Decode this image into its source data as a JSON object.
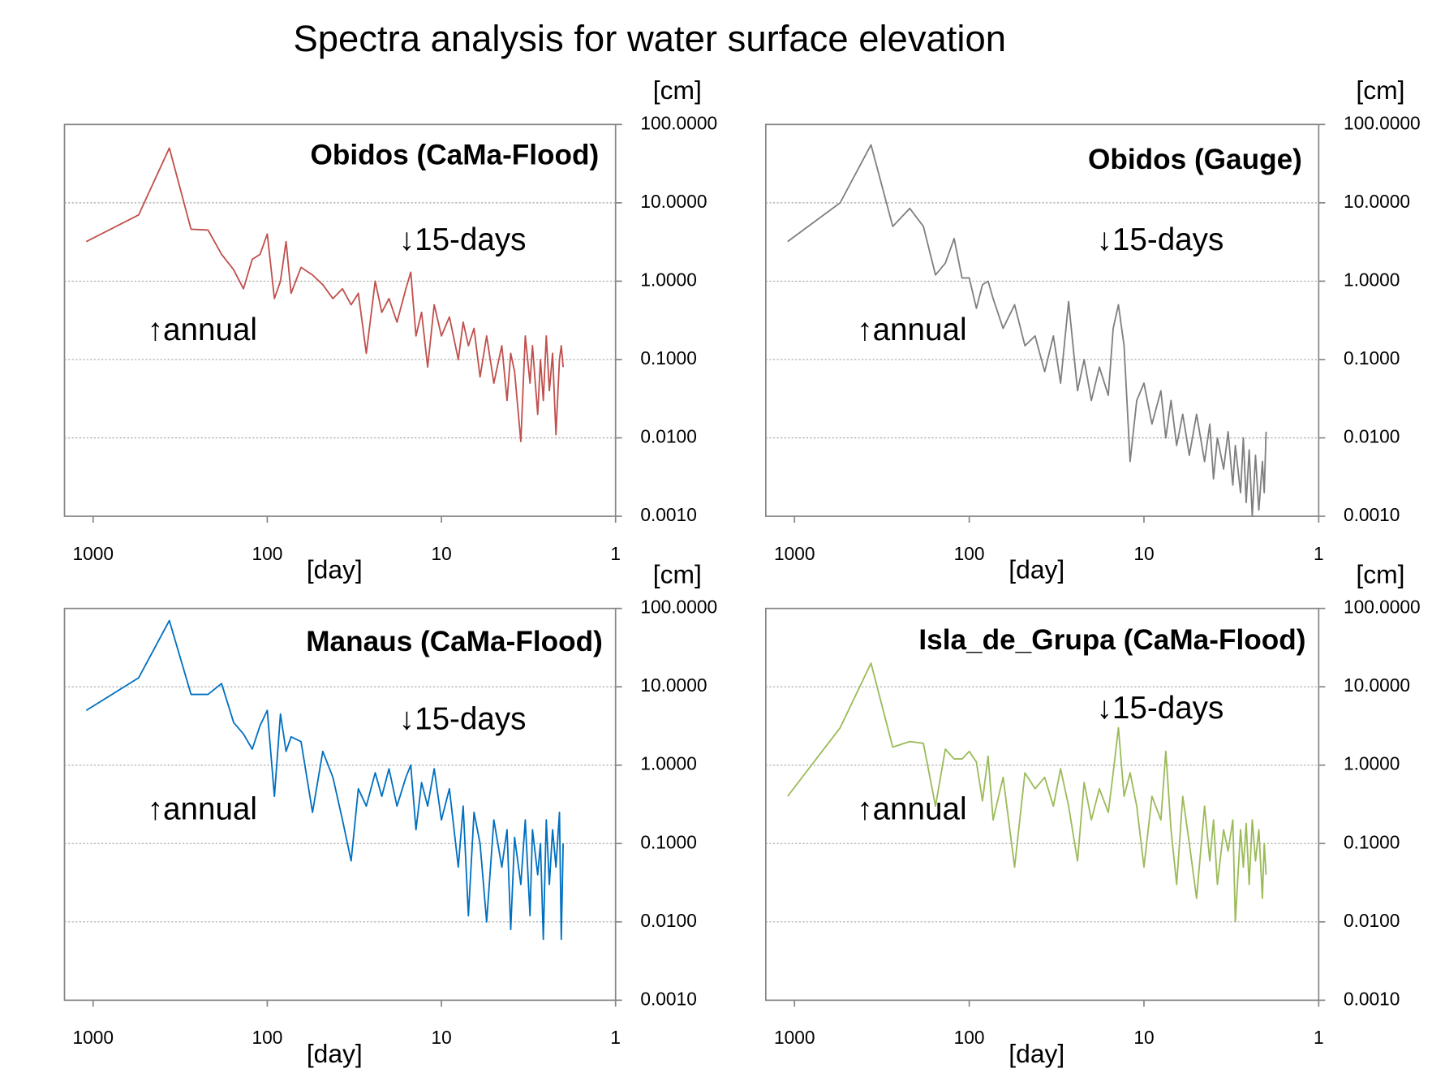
{
  "title": "Spectra analysis for water surface elevation",
  "chart_data": [
    {
      "type": "line",
      "title": "Obidos (CaMa-Flood)",
      "x_label": "[day]",
      "y_label": "[cm]",
      "annotations": [
        "↑annual",
        "↓15-days"
      ],
      "color": "#c0504d",
      "x_log": true,
      "y_log": true,
      "grid": true,
      "xlim": [
        1460,
        1
      ],
      "xticks": [
        1000,
        100,
        10,
        1
      ],
      "ylim": [
        0.001,
        100
      ],
      "yticks": [
        {
          "value": 0.001,
          "label": "0.0010"
        },
        {
          "value": 0.01,
          "label": "0.0100"
        },
        {
          "value": 0.1,
          "label": "0.1000"
        },
        {
          "value": 1,
          "label": "1.0000"
        },
        {
          "value": 10,
          "label": "10.0000"
        },
        {
          "value": 100,
          "label": "100.0000"
        }
      ],
      "x": [
        1095,
        548,
        365,
        274,
        219,
        183,
        156,
        137,
        122,
        110,
        100,
        91,
        84,
        78,
        73,
        64,
        55,
        48,
        42,
        37,
        33,
        30,
        27,
        24,
        22,
        20,
        18,
        16,
        15,
        14,
        13,
        12,
        11,
        10,
        9,
        8,
        7.5,
        7,
        6.5,
        6,
        5.5,
        5,
        4.5,
        4.2,
        4,
        3.8,
        3.5,
        3.3,
        3.1,
        3,
        2.8,
        2.7,
        2.6,
        2.5,
        2.4,
        2.3,
        2.2,
        2.1,
        2.05,
        2
      ],
      "values": [
        3.2,
        7,
        50,
        4.6,
        4.5,
        2.2,
        1.4,
        0.8,
        1.9,
        2.2,
        4,
        0.6,
        1.0,
        3.2,
        0.7,
        1.5,
        1.2,
        0.9,
        0.6,
        0.8,
        0.5,
        0.7,
        0.12,
        1.0,
        0.4,
        0.6,
        0.3,
        0.8,
        1.3,
        0.2,
        0.4,
        0.08,
        0.5,
        0.2,
        0.35,
        0.1,
        0.3,
        0.15,
        0.25,
        0.06,
        0.2,
        0.05,
        0.15,
        0.03,
        0.12,
        0.07,
        0.009,
        0.2,
        0.05,
        0.15,
        0.02,
        0.1,
        0.03,
        0.2,
        0.04,
        0.12,
        0.011,
        0.1,
        0.15,
        0.08
      ]
    },
    {
      "type": "line",
      "title": "Obidos (Gauge)",
      "x_label": "[day]",
      "y_label": "[cm]",
      "annotations": [
        "↑annual",
        "↓15-days"
      ],
      "color": "#7f7f7f",
      "x_log": true,
      "y_log": true,
      "grid": true,
      "xlim": [
        1460,
        1
      ],
      "xticks": [
        1000,
        100,
        10,
        1
      ],
      "ylim": [
        0.001,
        100
      ],
      "yticks": [
        {
          "value": 0.001,
          "label": "0.0010"
        },
        {
          "value": 0.01,
          "label": "0.0100"
        },
        {
          "value": 0.1,
          "label": "0.1000"
        },
        {
          "value": 1,
          "label": "1.0000"
        },
        {
          "value": 10,
          "label": "10.0000"
        },
        {
          "value": 100,
          "label": "100.0000"
        }
      ],
      "x": [
        1095,
        548,
        365,
        274,
        219,
        183,
        156,
        137,
        122,
        110,
        100,
        91,
        84,
        78,
        73,
        64,
        55,
        48,
        42,
        37,
        33,
        30,
        27,
        24,
        22,
        20,
        18,
        16,
        15,
        14,
        13,
        12,
        11,
        10,
        9,
        8,
        7.5,
        7,
        6.5,
        6,
        5.5,
        5,
        4.5,
        4.2,
        4,
        3.8,
        3.5,
        3.3,
        3.1,
        3,
        2.8,
        2.7,
        2.6,
        2.5,
        2.4,
        2.3,
        2.2,
        2.1,
        2.05,
        2
      ],
      "values": [
        3.2,
        10,
        55,
        5,
        8.5,
        5,
        1.2,
        1.7,
        3.5,
        1.1,
        1.1,
        0.45,
        0.9,
        1.0,
        0.6,
        0.25,
        0.5,
        0.15,
        0.2,
        0.07,
        0.2,
        0.05,
        0.55,
        0.04,
        0.1,
        0.03,
        0.08,
        0.035,
        0.25,
        0.5,
        0.15,
        0.005,
        0.03,
        0.05,
        0.015,
        0.04,
        0.01,
        0.03,
        0.008,
        0.02,
        0.006,
        0.02,
        0.005,
        0.015,
        0.003,
        0.01,
        0.004,
        0.012,
        0.0025,
        0.008,
        0.002,
        0.01,
        0.0015,
        0.007,
        0.001,
        0.006,
        0.0012,
        0.005,
        0.002,
        0.012
      ]
    },
    {
      "type": "line",
      "title": "Manaus (CaMa-Flood)",
      "x_label": "[day]",
      "y_label": "[cm]",
      "annotations": [
        "↑annual",
        "↓15-days"
      ],
      "color": "#0070c0",
      "x_log": true,
      "y_log": true,
      "grid": true,
      "xlim": [
        1460,
        1
      ],
      "xticks": [
        1000,
        100,
        10,
        1
      ],
      "ylim": [
        0.001,
        100
      ],
      "yticks": [
        {
          "value": 0.001,
          "label": "0.0010"
        },
        {
          "value": 0.01,
          "label": "0.0100"
        },
        {
          "value": 0.1,
          "label": "0.1000"
        },
        {
          "value": 1,
          "label": "1.0000"
        },
        {
          "value": 10,
          "label": "10.0000"
        },
        {
          "value": 100,
          "label": "100.0000"
        }
      ],
      "x": [
        1095,
        548,
        365,
        274,
        219,
        183,
        156,
        137,
        122,
        110,
        100,
        91,
        84,
        78,
        73,
        64,
        55,
        48,
        42,
        37,
        33,
        30,
        27,
        24,
        22,
        20,
        18,
        16,
        15,
        14,
        13,
        12,
        11,
        10,
        9,
        8,
        7.5,
        7,
        6.5,
        6,
        5.5,
        5,
        4.5,
        4.2,
        4,
        3.8,
        3.5,
        3.3,
        3.1,
        3,
        2.8,
        2.7,
        2.6,
        2.5,
        2.4,
        2.3,
        2.2,
        2.1,
        2.05,
        2
      ],
      "values": [
        5,
        13,
        70,
        8,
        8,
        11,
        3.5,
        2.5,
        1.6,
        3.2,
        5,
        0.4,
        4.5,
        1.5,
        2.3,
        2,
        0.25,
        1.5,
        0.7,
        0.2,
        0.06,
        0.5,
        0.3,
        0.8,
        0.4,
        0.9,
        0.3,
        0.7,
        1.0,
        0.15,
        0.6,
        0.3,
        0.9,
        0.2,
        0.5,
        0.05,
        0.3,
        0.012,
        0.25,
        0.1,
        0.01,
        0.2,
        0.05,
        0.15,
        0.008,
        0.12,
        0.03,
        0.2,
        0.012,
        0.15,
        0.04,
        0.1,
        0.006,
        0.2,
        0.03,
        0.15,
        0.05,
        0.25,
        0.006,
        0.1
      ]
    },
    {
      "type": "line",
      "title": "Isla_de_Grupa (CaMa-Flood)",
      "x_label": "[day]",
      "y_label": "[cm]",
      "annotations": [
        "↑annual",
        "↓15-days"
      ],
      "color": "#9bbb59",
      "x_log": true,
      "y_log": true,
      "grid": true,
      "xlim": [
        1460,
        1
      ],
      "xticks": [
        1000,
        100,
        10,
        1
      ],
      "ylim": [
        0.001,
        100
      ],
      "yticks": [
        {
          "value": 0.001,
          "label": "0.0010"
        },
        {
          "value": 0.01,
          "label": "0.0100"
        },
        {
          "value": 0.1,
          "label": "0.1000"
        },
        {
          "value": 1,
          "label": "1.0000"
        },
        {
          "value": 10,
          "label": "10.0000"
        },
        {
          "value": 100,
          "label": "100.0000"
        }
      ],
      "x": [
        1095,
        548,
        365,
        274,
        219,
        183,
        156,
        137,
        122,
        110,
        100,
        91,
        84,
        78,
        73,
        64,
        55,
        48,
        42,
        37,
        33,
        30,
        27,
        24,
        22,
        20,
        18,
        16,
        15,
        14,
        13,
        12,
        11,
        10,
        9,
        8,
        7.5,
        7,
        6.5,
        6,
        5.5,
        5,
        4.5,
        4.2,
        4,
        3.8,
        3.5,
        3.3,
        3.1,
        3,
        2.8,
        2.7,
        2.6,
        2.5,
        2.4,
        2.3,
        2.2,
        2.1,
        2.05,
        2
      ],
      "values": [
        0.4,
        3,
        20,
        1.7,
        2,
        1.9,
        0.3,
        1.6,
        1.2,
        1.2,
        1.5,
        1.1,
        0.35,
        1.3,
        0.2,
        0.7,
        0.05,
        0.8,
        0.5,
        0.7,
        0.3,
        0.9,
        0.3,
        0.06,
        0.6,
        0.2,
        0.5,
        0.25,
        0.8,
        3.0,
        0.4,
        0.8,
        0.3,
        0.05,
        0.4,
        0.2,
        1.5,
        0.15,
        0.03,
        0.4,
        0.1,
        0.02,
        0.3,
        0.06,
        0.2,
        0.03,
        0.15,
        0.08,
        0.2,
        0.01,
        0.15,
        0.05,
        0.18,
        0.03,
        0.2,
        0.06,
        0.15,
        0.02,
        0.1,
        0.04
      ]
    }
  ]
}
